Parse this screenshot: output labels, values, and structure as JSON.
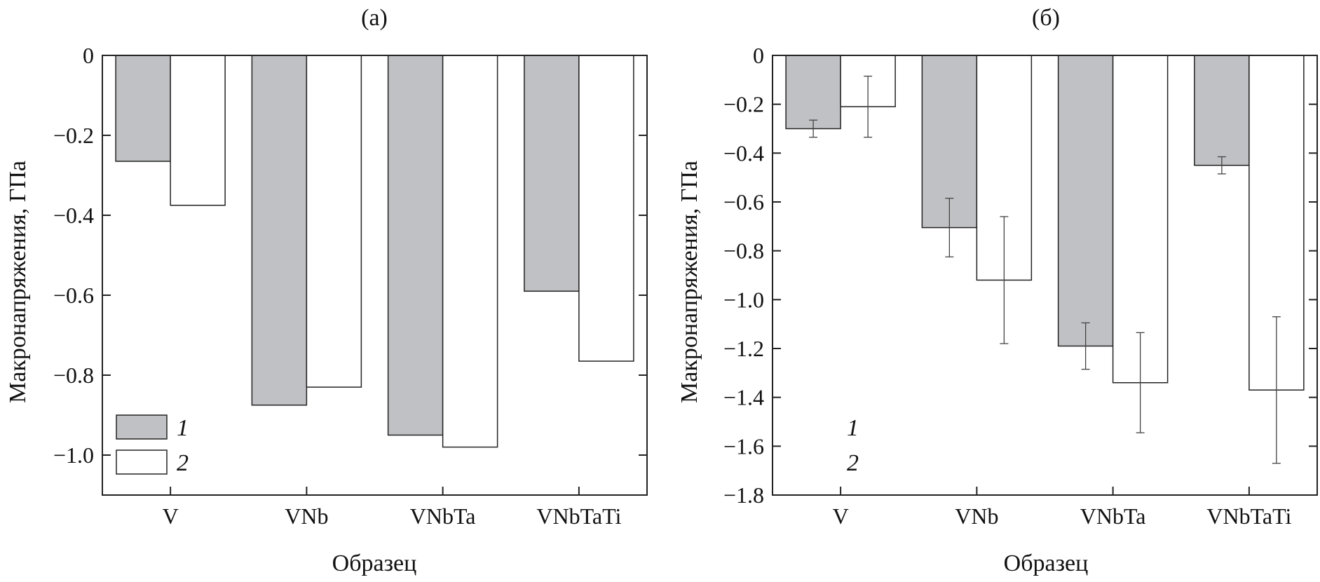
{
  "chart_data": [
    {
      "type": "bar",
      "panel_label": "(а)",
      "categories": [
        "V",
        "VNb",
        "VNbTa",
        "VNbTaTi"
      ],
      "series": [
        {
          "name": "1",
          "color": "#c0c1c4",
          "values": [
            -0.265,
            -0.875,
            -0.95,
            -0.59
          ]
        },
        {
          "name": "2",
          "color": "#ffffff",
          "values": [
            -0.375,
            -0.83,
            -0.98,
            -0.765
          ]
        }
      ],
      "xlabel": "Образец",
      "ylabel": "Макронапряжения, ГПа",
      "ylim": [
        -1.1,
        0
      ],
      "yticks": [
        0,
        -0.2,
        -0.4,
        -0.6,
        -0.8,
        -1.0
      ],
      "ytick_labels": [
        "0",
        "−0.2",
        "−0.4",
        "−0.6",
        "−0.8",
        "−1.0"
      ],
      "error_bars": false,
      "legend": {
        "position": "bottom-left",
        "entries": [
          "1",
          "2"
        ],
        "swatches": true
      },
      "grid": false
    },
    {
      "type": "bar",
      "panel_label": "(б)",
      "categories": [
        "V",
        "VNb",
        "VNbTa",
        "VNbTaTi"
      ],
      "series": [
        {
          "name": "1",
          "color": "#c0c1c4",
          "values": [
            -0.3,
            -0.705,
            -1.19,
            -0.45
          ],
          "errors": [
            0.035,
            0.12,
            0.095,
            0.035
          ]
        },
        {
          "name": "2",
          "color": "#ffffff",
          "values": [
            -0.21,
            -0.92,
            -1.34,
            -1.37
          ],
          "errors": [
            0.125,
            0.26,
            0.205,
            0.3
          ]
        }
      ],
      "xlabel": "Образец",
      "ylabel": "Макронапряжения, ГПа",
      "ylim": [
        -1.8,
        0
      ],
      "yticks": [
        0,
        -0.2,
        -0.4,
        -0.6,
        -0.8,
        -1.0,
        -1.2,
        -1.4,
        -1.6,
        -1.8
      ],
      "ytick_labels": [
        "0",
        "−0.2",
        "−0.4",
        "−0.6",
        "−0.8",
        "−1.0",
        "−1.2",
        "−1.4",
        "−1.6",
        "−1.8"
      ],
      "error_bars": true,
      "legend": {
        "position": "bottom-left",
        "entries": [
          "1",
          "2"
        ],
        "swatches": false
      },
      "grid": false
    }
  ]
}
